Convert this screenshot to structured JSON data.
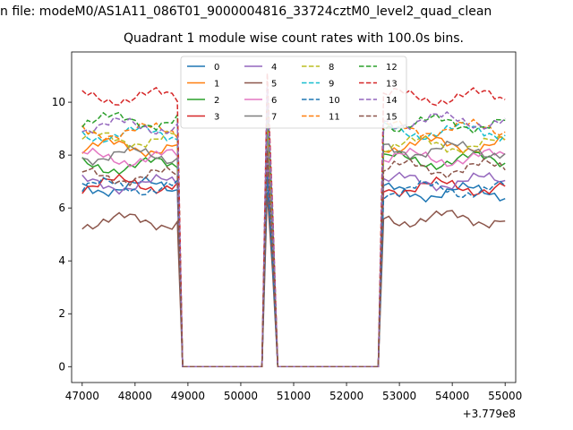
{
  "figure": {
    "suptitle": "n file: modeM0/AS1A11_086T01_9000004816_33724cztM0_level2_quad_clean",
    "title": "Quadrant 1 module wise count rates with 100.0s bins."
  },
  "chart_data": {
    "type": "line",
    "title": "Quadrant 1 module wise count rates with 100.0s bins.",
    "xlabel": "",
    "ylabel": "",
    "x_offset_label": "+3.779e8",
    "xlim": [
      46800,
      55200
    ],
    "ylim": [
      -0.6,
      11.9
    ],
    "xticks": [
      47000,
      48000,
      49000,
      50000,
      51000,
      52000,
      53000,
      54000,
      55000
    ],
    "yticks": [
      0,
      2,
      4,
      6,
      8,
      10
    ],
    "grid": false,
    "legend": {
      "placement": "top-center",
      "columns": 4
    },
    "segments": [
      {
        "x_start": 47000,
        "x_end": 48800,
        "step": 100
      },
      {
        "x_start": 48900,
        "x_end": 50400,
        "step": 100
      },
      {
        "x_start": 50500,
        "x_end": 50600,
        "step": 100
      },
      {
        "x_start": 50700,
        "x_end": 52600,
        "step": 100
      },
      {
        "x_start": 52700,
        "x_end": 55000,
        "step": 100
      }
    ],
    "series": [
      {
        "name": "0",
        "color": "#1f77b4",
        "dash": "solid",
        "pre": 6.8,
        "peak": 7.5,
        "post": 6.6
      },
      {
        "name": "1",
        "color": "#ff7f0e",
        "dash": "solid",
        "pre": 8.3,
        "peak": 9.6,
        "post": 8.4
      },
      {
        "name": "2",
        "color": "#2ca02c",
        "dash": "solid",
        "pre": 7.6,
        "peak": 8.6,
        "post": 7.8
      },
      {
        "name": "3",
        "color": "#d62728",
        "dash": "solid",
        "pre": 6.9,
        "peak": 7.8,
        "post": 6.8
      },
      {
        "name": "4",
        "color": "#9467bd",
        "dash": "solid",
        "pre": 6.9,
        "peak": 8.0,
        "post": 7.0
      },
      {
        "name": "5",
        "color": "#8c564b",
        "dash": "solid",
        "pre": 5.5,
        "peak": 6.6,
        "post": 5.6
      },
      {
        "name": "6",
        "color": "#e377c2",
        "dash": "solid",
        "pre": 7.9,
        "peak": 9.0,
        "post": 7.9
      },
      {
        "name": "7",
        "color": "#7f7f7f",
        "dash": "solid",
        "pre": 8.0,
        "peak": 9.2,
        "post": 8.2
      },
      {
        "name": "8",
        "color": "#bcbd22",
        "dash": "dashed",
        "pre": 8.6,
        "peak": 9.8,
        "post": 8.4
      },
      {
        "name": "9",
        "color": "#17becf",
        "dash": "dashed",
        "pre": 8.8,
        "peak": 10.1,
        "post": 8.9
      },
      {
        "name": "10",
        "color": "#1f77b4",
        "dash": "dashed",
        "pre": 6.8,
        "peak": 7.2,
        "post": 6.7
      },
      {
        "name": "11",
        "color": "#ff7f0e",
        "dash": "dashed",
        "pre": 8.9,
        "peak": 10.2,
        "post": 9.0
      },
      {
        "name": "12",
        "color": "#2ca02c",
        "dash": "dashed",
        "pre": 9.3,
        "peak": 10.5,
        "post": 9.2
      },
      {
        "name": "13",
        "color": "#d62728",
        "dash": "dashed",
        "pre": 10.2,
        "peak": 11.1,
        "post": 10.2
      },
      {
        "name": "14",
        "color": "#9467bd",
        "dash": "dashed",
        "pre": 9.1,
        "peak": 10.6,
        "post": 9.3
      },
      {
        "name": "15",
        "color": "#8c564b",
        "dash": "dashed",
        "pre": 7.2,
        "peak": 8.2,
        "post": 7.5
      }
    ]
  }
}
